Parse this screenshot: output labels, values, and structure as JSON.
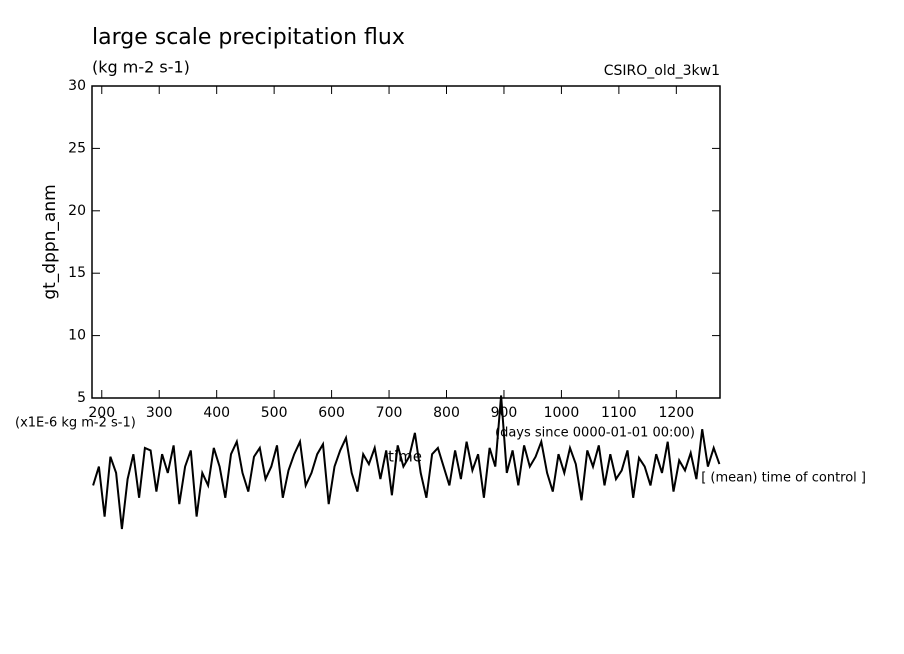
{
  "chart_data": {
    "type": "line",
    "title": "large scale precipitation flux",
    "subtitle": "(kg m-2 s-1)",
    "run_label": "CSIRO_old_3kw1",
    "ylabel": "gt_dppn_anm",
    "unit_label": "(x1E-6 kg m-2 s-1)",
    "xunit_label": "(days since 0000-01-01 00:00)",
    "xlabel": "time",
    "note": "[ (mean) time of control ]",
    "xlim": [
      183,
      1276
    ],
    "ylim": [
      5,
      30
    ],
    "xticks": [
      200,
      300,
      400,
      500,
      600,
      700,
      800,
      900,
      1000,
      1100,
      1200
    ],
    "yticks": [
      5,
      10,
      15,
      20,
      25,
      30
    ],
    "color": "#000000",
    "x": [
      185,
      195,
      205,
      215,
      225,
      235,
      245,
      255,
      265,
      275,
      285,
      295,
      305,
      315,
      325,
      335,
      345,
      355,
      365,
      375,
      385,
      395,
      405,
      415,
      425,
      435,
      445,
      455,
      465,
      475,
      485,
      495,
      505,
      515,
      525,
      535,
      545,
      555,
      565,
      575,
      585,
      595,
      605,
      615,
      625,
      635,
      645,
      655,
      665,
      675,
      685,
      695,
      705,
      715,
      725,
      735,
      745,
      755,
      765,
      775,
      785,
      795,
      805,
      815,
      825,
      835,
      845,
      855,
      865,
      875,
      885,
      895,
      905,
      915,
      925,
      935,
      945,
      955,
      965,
      975,
      985,
      995,
      1005,
      1015,
      1025,
      1035,
      1045,
      1055,
      1065,
      1075,
      1085,
      1095,
      1105,
      1115,
      1125,
      1135,
      1145,
      1155,
      1165,
      1175,
      1185,
      1195,
      1205,
      1215,
      1225,
      1235,
      1245,
      1255,
      1265,
      1275
    ],
    "values": [
      -2,
      -0.5,
      -4.5,
      0.3,
      -1,
      -5.5,
      -1.5,
      0.5,
      -3,
      1,
      0.8,
      -2.5,
      0.5,
      -1,
      1.2,
      -3.5,
      -0.5,
      0.8,
      -4.5,
      -1,
      -2,
      1,
      -0.5,
      -3,
      0.5,
      1.5,
      -1,
      -2.5,
      0.3,
      1,
      -1.5,
      -0.5,
      1.2,
      -3,
      -0.8,
      0.5,
      1.5,
      -2,
      -1,
      0.5,
      1.3,
      -3.5,
      -0.5,
      0.8,
      1.8,
      -1,
      -2.5,
      0.5,
      -0.3,
      1,
      -1.5,
      0.8,
      -2.8,
      1.2,
      -0.5,
      0.3,
      2.2,
      -1,
      -3,
      0.5,
      1,
      -0.5,
      -2,
      0.8,
      -1.5,
      1.5,
      -0.8,
      0.5,
      -3,
      1,
      -0.5,
      5.2,
      -1,
      0.8,
      -2,
      1.2,
      -0.5,
      0.3,
      1.5,
      -1,
      -2.5,
      0.5,
      -1,
      1,
      -0.3,
      -3.2,
      0.8,
      -0.5,
      1.2,
      -2,
      0.5,
      -1.5,
      -0.8,
      0.8,
      -3,
      0.2,
      -0.5,
      -2,
      0.5,
      -1,
      1.5,
      -2.5,
      0,
      -0.8,
      0.6,
      -1.5,
      2.5,
      -0.5,
      1.0,
      -0.3
    ]
  }
}
